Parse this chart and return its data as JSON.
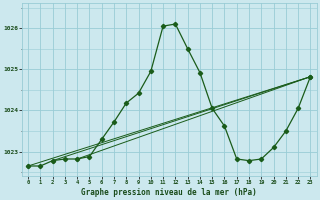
{
  "title": "Graphe pression niveau de la mer (hPa)",
  "bg_color": "#cce8ee",
  "grid_color": "#99ccd6",
  "line_color": "#1a5c1a",
  "text_color": "#1a4c1a",
  "xlim": [
    -0.5,
    23.5
  ],
  "ylim": [
    1022.4,
    1026.6
  ],
  "yticks": [
    1023,
    1024,
    1025,
    1026
  ],
  "xtick_labels": [
    "0",
    "1",
    "2",
    "3",
    "4",
    "5",
    "6",
    "7",
    "8",
    "9",
    "10",
    "11",
    "12",
    "13",
    "14",
    "15",
    "16",
    "17",
    "18",
    "19",
    "20",
    "21",
    "22",
    "23"
  ],
  "series": [
    [
      0,
      1022.65
    ],
    [
      1,
      1022.65
    ],
    [
      2,
      1022.78
    ],
    [
      3,
      1022.82
    ],
    [
      4,
      1022.82
    ],
    [
      5,
      1022.88
    ],
    [
      6,
      1023.3
    ],
    [
      7,
      1023.72
    ],
    [
      8,
      1024.18
    ],
    [
      9,
      1024.42
    ],
    [
      10,
      1024.95
    ],
    [
      11,
      1026.05
    ],
    [
      12,
      1026.1
    ],
    [
      13,
      1025.5
    ],
    [
      14,
      1024.92
    ],
    [
      15,
      1024.05
    ],
    [
      16,
      1023.62
    ],
    [
      17,
      1022.82
    ],
    [
      18,
      1022.78
    ],
    [
      19,
      1022.82
    ],
    [
      20,
      1023.1
    ],
    [
      21,
      1023.5
    ],
    [
      22,
      1024.05
    ],
    [
      23,
      1024.82
    ]
  ],
  "extra_series": [
    [
      [
        0,
        1022.65
      ],
      [
        23,
        1024.82
      ]
    ],
    [
      [
        2,
        1022.78
      ],
      [
        23,
        1024.82
      ]
    ],
    [
      [
        4,
        1022.82
      ],
      [
        23,
        1024.82
      ]
    ]
  ],
  "figwidth": 3.2,
  "figheight": 2.0,
  "dpi": 100
}
